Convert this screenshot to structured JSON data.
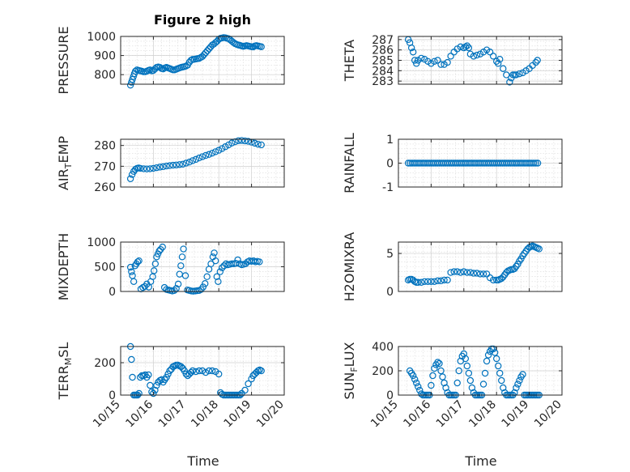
{
  "chart_data": [
    {
      "type": "scatter",
      "ylabel": "PRESSURE",
      "title": "Figure 2 high",
      "xlim": [
        0,
        5
      ],
      "ylim": [
        750,
        1000
      ],
      "yticks": [
        800,
        900,
        1000
      ],
      "yticklabels": [
        "800",
        "900",
        "1000"
      ],
      "x": [
        0.3,
        0.33,
        0.36,
        0.39,
        0.42,
        0.45,
        0.5,
        0.55,
        0.6,
        0.65,
        0.7,
        0.75,
        0.8,
        0.85,
        0.9,
        0.95,
        1.0,
        1.05,
        1.1,
        1.15,
        1.2,
        1.25,
        1.3,
        1.35,
        1.4,
        1.45,
        1.5,
        1.55,
        1.6,
        1.65,
        1.7,
        1.75,
        1.8,
        1.85,
        1.9,
        1.95,
        2.0,
        2.05,
        2.1,
        2.15,
        2.2,
        2.25,
        2.3,
        2.35,
        2.4,
        2.45,
        2.5,
        2.55,
        2.6,
        2.65,
        2.7,
        2.75,
        2.8,
        2.85,
        2.9,
        2.95,
        3.0,
        3.05,
        3.1,
        3.15,
        3.2,
        3.25,
        3.3,
        3.35,
        3.4,
        3.45,
        3.5,
        3.55,
        3.6,
        3.65,
        3.7,
        3.75,
        3.8,
        3.85,
        3.9,
        3.95,
        4.0,
        4.05,
        4.1,
        4.15,
        4.2,
        4.25,
        4.3
      ],
      "y": [
        745,
        760,
        775,
        790,
        805,
        818,
        825,
        822,
        820,
        818,
        815,
        815,
        818,
        822,
        825,
        820,
        822,
        830,
        838,
        840,
        838,
        832,
        830,
        835,
        838,
        835,
        832,
        828,
        825,
        825,
        828,
        832,
        835,
        838,
        840,
        842,
        845,
        850,
        865,
        875,
        880,
        880,
        882,
        884,
        885,
        890,
        895,
        905,
        915,
        925,
        935,
        945,
        955,
        960,
        968,
        975,
        985,
        990,
        992,
        994,
        993,
        990,
        988,
        982,
        975,
        968,
        962,
        958,
        955,
        953,
        950,
        948,
        950,
        952,
        950,
        948,
        946,
        945,
        950,
        952,
        950,
        948,
        946
      ],
      "x_fraction_max": 0.86
    },
    {
      "type": "scatter",
      "ylabel": "THETA",
      "xlim": [
        0,
        5
      ],
      "ylim": [
        282.7,
        287.3
      ],
      "yticks": [
        283,
        284,
        285,
        286,
        287
      ],
      "yticklabels": [
        "283",
        "284",
        "285",
        "286",
        "287"
      ],
      "x": [
        0.3,
        0.35,
        0.4,
        0.45,
        0.5,
        0.55,
        0.6,
        0.7,
        0.8,
        0.9,
        1.0,
        1.1,
        1.2,
        1.3,
        1.4,
        1.5,
        1.6,
        1.7,
        1.8,
        1.9,
        2.0,
        2.05,
        2.1,
        2.15,
        2.2,
        2.3,
        2.4,
        2.5,
        2.6,
        2.7,
        2.8,
        2.9,
        3.0,
        3.05,
        3.1,
        3.2,
        3.3,
        3.4,
        3.45,
        3.5,
        3.55,
        3.6,
        3.7,
        3.8,
        3.9,
        4.0,
        4.1,
        4.2,
        4.25
      ],
      "y": [
        287.0,
        286.7,
        286.2,
        285.8,
        285.0,
        284.7,
        285.0,
        285.2,
        285.1,
        284.9,
        284.7,
        284.9,
        285.0,
        284.6,
        284.6,
        284.8,
        285.4,
        285.8,
        286.1,
        286.3,
        286.2,
        286.3,
        286.4,
        286.2,
        285.6,
        285.4,
        285.5,
        285.6,
        285.8,
        286.0,
        285.8,
        285.4,
        284.9,
        284.7,
        285.1,
        284.2,
        283.6,
        282.9,
        283.3,
        283.6,
        283.6,
        283.6,
        283.7,
        283.8,
        284.0,
        284.2,
        284.5,
        284.8,
        285.0
      ]
    },
    {
      "type": "scatter",
      "ylabel": "AIR_TEMP",
      "xlim": [
        0,
        5
      ],
      "ylim": [
        260,
        283
      ],
      "yticks": [
        260,
        270,
        280
      ],
      "yticklabels": [
        "260",
        "270",
        "280"
      ],
      "x": [
        0.3,
        0.35,
        0.4,
        0.45,
        0.5,
        0.55,
        0.6,
        0.7,
        0.8,
        0.9,
        1.0,
        1.1,
        1.2,
        1.3,
        1.4,
        1.5,
        1.6,
        1.7,
        1.8,
        1.9,
        2.0,
        2.1,
        2.2,
        2.3,
        2.4,
        2.5,
        2.6,
        2.7,
        2.8,
        2.9,
        3.0,
        3.1,
        3.2,
        3.3,
        3.4,
        3.5,
        3.6,
        3.7,
        3.8,
        3.9,
        4.0,
        4.1,
        4.2,
        4.3
      ],
      "y": [
        264,
        266,
        267.5,
        268.5,
        269,
        269.2,
        269,
        268.8,
        268.7,
        268.8,
        269,
        269.3,
        269.6,
        269.8,
        270.1,
        270.3,
        270.5,
        270.6,
        270.8,
        271.0,
        271.5,
        272,
        272.7,
        273.3,
        274,
        274.6,
        275.2,
        275.7,
        276.3,
        277,
        277.7,
        278.5,
        279.4,
        280.3,
        281.2,
        281.8,
        282.3,
        282.4,
        282.2,
        282,
        281.6,
        281.1,
        280.6,
        280.3
      ]
    },
    {
      "type": "scatter",
      "ylabel": "RAINFALL",
      "xlim": [
        0,
        5
      ],
      "ylim": [
        -1,
        1
      ],
      "yticks": [
        -1,
        0,
        1
      ],
      "yticklabels": [
        "-1",
        "0",
        "1"
      ],
      "x": [
        0.3,
        0.36,
        0.42,
        0.48,
        0.54,
        0.6,
        0.66,
        0.72,
        0.78,
        0.84,
        0.9,
        0.96,
        1.02,
        1.08,
        1.14,
        1.2,
        1.26,
        1.32,
        1.38,
        1.44,
        1.5,
        1.56,
        1.62,
        1.68,
        1.74,
        1.8,
        1.86,
        1.92,
        1.98,
        2.04,
        2.1,
        2.16,
        2.22,
        2.28,
        2.34,
        2.4,
        2.46,
        2.52,
        2.58,
        2.64,
        2.7,
        2.76,
        2.82,
        2.88,
        2.94,
        3.0,
        3.06,
        3.12,
        3.18,
        3.24,
        3.3,
        3.36,
        3.42,
        3.48,
        3.54,
        3.6,
        3.66,
        3.72,
        3.78,
        3.84,
        3.9,
        3.96,
        4.02,
        4.08,
        4.14,
        4.2,
        4.26
      ],
      "y": [
        0,
        0,
        0,
        0,
        0,
        0,
        0,
        0,
        0,
        0,
        0,
        0,
        0,
        0,
        0,
        0,
        0,
        0,
        0,
        0,
        0,
        0,
        0,
        0,
        0,
        0,
        0,
        0,
        0,
        0,
        0,
        0,
        0,
        0,
        0,
        0,
        0,
        0,
        0,
        0,
        0,
        0,
        0,
        0,
        0,
        0,
        0,
        0,
        0,
        0,
        0,
        0,
        0,
        0,
        0,
        0,
        0,
        0,
        0,
        0,
        0,
        0,
        0,
        0,
        0,
        0,
        0
      ]
    },
    {
      "type": "scatter",
      "ylabel": "MIXDEPTH",
      "xlim": [
        0,
        5
      ],
      "ylim": [
        0,
        1000
      ],
      "yticks": [
        0,
        500,
        1000
      ],
      "yticklabels": [
        "0",
        "500",
        "1000"
      ],
      "x": [
        0.3,
        0.33,
        0.36,
        0.4,
        0.44,
        0.48,
        0.52,
        0.56,
        0.62,
        0.68,
        0.74,
        0.8,
        0.86,
        0.92,
        0.98,
        1.02,
        1.06,
        1.1,
        1.14,
        1.18,
        1.22,
        1.28,
        1.34,
        1.4,
        1.46,
        1.52,
        1.58,
        1.64,
        1.7,
        1.76,
        1.8,
        1.84,
        1.88,
        1.92,
        1.98,
        2.04,
        2.1,
        2.16,
        2.22,
        2.28,
        2.34,
        2.4,
        2.46,
        2.52,
        2.58,
        2.64,
        2.7,
        2.76,
        2.82,
        2.86,
        2.9,
        2.94,
        2.98,
        3.04,
        3.1,
        3.16,
        3.22,
        3.28,
        3.34,
        3.4,
        3.46,
        3.52,
        3.58,
        3.64,
        3.7,
        3.76,
        3.82,
        3.88,
        3.94,
        4.0,
        4.06,
        4.12,
        4.18,
        4.24
      ],
      "y": [
        490,
        400,
        320,
        200,
        520,
        560,
        600,
        620,
        50,
        80,
        100,
        150,
        90,
        200,
        300,
        420,
        560,
        700,
        760,
        820,
        850,
        900,
        80,
        40,
        30,
        20,
        10,
        20,
        60,
        150,
        350,
        520,
        700,
        860,
        320,
        30,
        20,
        10,
        5,
        10,
        15,
        20,
        40,
        90,
        160,
        300,
        450,
        560,
        700,
        780,
        620,
        300,
        200,
        400,
        480,
        520,
        560,
        540,
        550,
        560,
        560,
        570,
        640,
        560,
        540,
        550,
        560,
        600,
        620,
        610,
        620,
        600,
        610,
        600
      ]
    },
    {
      "type": "scatter",
      "ylabel": "H2OMIXRA",
      "xlim": [
        0,
        5
      ],
      "ylim": [
        0,
        6.5
      ],
      "yticks": [
        0,
        5
      ],
      "yticklabels": [
        "0",
        "5"
      ],
      "x": [
        0.3,
        0.35,
        0.4,
        0.45,
        0.5,
        0.55,
        0.6,
        0.7,
        0.8,
        0.9,
        1.0,
        1.1,
        1.2,
        1.3,
        1.4,
        1.5,
        1.6,
        1.7,
        1.8,
        1.9,
        2.0,
        2.1,
        2.2,
        2.3,
        2.4,
        2.5,
        2.6,
        2.7,
        2.8,
        2.9,
        3.0,
        3.05,
        3.1,
        3.15,
        3.2,
        3.25,
        3.3,
        3.35,
        3.4,
        3.45,
        3.5,
        3.55,
        3.6,
        3.65,
        3.7,
        3.75,
        3.8,
        3.85,
        3.9,
        3.95,
        4.0,
        4.05,
        4.1,
        4.15,
        4.2,
        4.25,
        4.3
      ],
      "y": [
        1.5,
        1.6,
        1.6,
        1.5,
        1.3,
        1.2,
        1.2,
        1.2,
        1.3,
        1.3,
        1.3,
        1.3,
        1.4,
        1.4,
        1.5,
        1.5,
        2.5,
        2.6,
        2.6,
        2.5,
        2.6,
        2.5,
        2.5,
        2.4,
        2.4,
        2.3,
        2.3,
        2.3,
        1.8,
        1.5,
        1.5,
        1.5,
        1.6,
        1.7,
        1.9,
        2.2,
        2.5,
        2.7,
        2.8,
        2.9,
        2.9,
        3.0,
        3.3,
        3.6,
        4.0,
        4.3,
        4.7,
        5.0,
        5.3,
        5.6,
        5.8,
        5.9,
        6.0,
        5.9,
        5.8,
        5.7,
        5.6
      ]
    },
    {
      "type": "scatter",
      "ylabel": "TERR_MSL",
      "xlim": [
        0,
        5
      ],
      "ylim": [
        0,
        300
      ],
      "yticks": [
        0,
        200
      ],
      "yticklabels": [
        "0",
        "200"
      ],
      "x": [
        0.3,
        0.33,
        0.36,
        0.4,
        0.44,
        0.48,
        0.52,
        0.56,
        0.6,
        0.65,
        0.7,
        0.75,
        0.8,
        0.85,
        0.9,
        0.95,
        1.0,
        1.05,
        1.1,
        1.15,
        1.2,
        1.25,
        1.3,
        1.35,
        1.4,
        1.45,
        1.5,
        1.55,
        1.6,
        1.65,
        1.7,
        1.75,
        1.8,
        1.85,
        1.9,
        1.95,
        2.0,
        2.05,
        2.1,
        2.15,
        2.2,
        2.3,
        2.4,
        2.5,
        2.6,
        2.7,
        2.8,
        2.9,
        3.0,
        3.05,
        3.1,
        3.15,
        3.2,
        3.25,
        3.3,
        3.35,
        3.4,
        3.45,
        3.5,
        3.55,
        3.6,
        3.65,
        3.7,
        3.8,
        3.9,
        4.0,
        4.05,
        4.1,
        4.15,
        4.2,
        4.25,
        4.3
      ],
      "y": [
        300,
        220,
        110,
        0,
        0,
        0,
        0,
        10,
        110,
        120,
        120,
        125,
        110,
        125,
        60,
        20,
        10,
        30,
        60,
        80,
        90,
        95,
        80,
        95,
        110,
        130,
        150,
        160,
        175,
        180,
        185,
        185,
        180,
        175,
        165,
        150,
        130,
        120,
        130,
        140,
        150,
        145,
        150,
        150,
        140,
        150,
        150,
        145,
        130,
        15,
        5,
        0,
        0,
        0,
        0,
        0,
        0,
        0,
        0,
        0,
        0,
        0,
        10,
        30,
        70,
        100,
        120,
        130,
        140,
        150,
        155,
        150
      ]
    },
    {
      "type": "scatter",
      "ylabel": "SUN_FLUX",
      "xlim": [
        0,
        5
      ],
      "ylim": [
        0,
        400
      ],
      "yticks": [
        0,
        200,
        400
      ],
      "yticklabels": [
        "0",
        "200",
        "400"
      ],
      "x": [
        0.35,
        0.4,
        0.45,
        0.5,
        0.55,
        0.6,
        0.65,
        0.7,
        0.75,
        0.8,
        0.85,
        0.9,
        0.95,
        1.0,
        1.05,
        1.1,
        1.15,
        1.2,
        1.25,
        1.3,
        1.35,
        1.4,
        1.45,
        1.5,
        1.55,
        1.6,
        1.65,
        1.7,
        1.75,
        1.8,
        1.85,
        1.9,
        1.95,
        2.0,
        2.05,
        2.1,
        2.15,
        2.2,
        2.25,
        2.3,
        2.35,
        2.4,
        2.45,
        2.5,
        2.55,
        2.6,
        2.65,
        2.7,
        2.75,
        2.8,
        2.85,
        2.9,
        2.95,
        3.0,
        3.05,
        3.1,
        3.15,
        3.2,
        3.25,
        3.3,
        3.35,
        3.4,
        3.45,
        3.5,
        3.55,
        3.6,
        3.65,
        3.7,
        3.75,
        3.8,
        3.85,
        3.9,
        3.95,
        4.0,
        4.05,
        4.1,
        4.15,
        4.2,
        4.25,
        4.3
      ],
      "y": [
        200,
        180,
        160,
        130,
        100,
        70,
        40,
        10,
        0,
        0,
        0,
        0,
        0,
        80,
        160,
        220,
        250,
        270,
        260,
        200,
        150,
        100,
        60,
        20,
        0,
        0,
        0,
        0,
        0,
        100,
        200,
        280,
        320,
        340,
        300,
        240,
        180,
        120,
        60,
        20,
        0,
        0,
        0,
        0,
        0,
        90,
        180,
        280,
        330,
        360,
        380,
        380,
        350,
        300,
        240,
        180,
        120,
        60,
        20,
        0,
        0,
        0,
        0,
        0,
        20,
        60,
        90,
        120,
        150,
        170,
        0,
        0,
        0,
        0,
        0,
        0,
        0,
        0,
        0,
        0
      ]
    }
  ],
  "xaxis": {
    "ticklabels": [
      "10/15",
      "10/16",
      "10/17",
      "10/18",
      "10/19",
      "10/20"
    ],
    "label": "Time"
  },
  "colors": {
    "marker": "#0072BD",
    "axis": "#262626"
  }
}
